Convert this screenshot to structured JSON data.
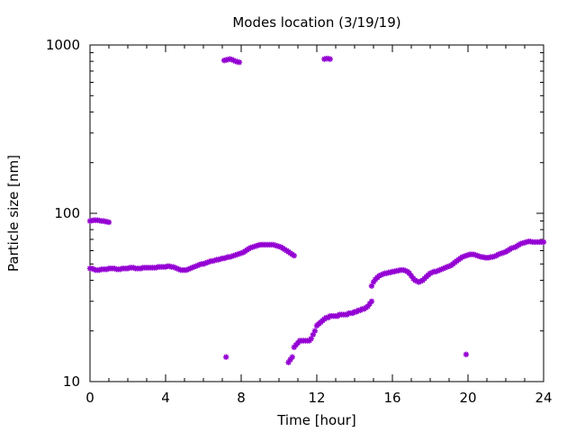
{
  "chart_data": {
    "type": "scatter",
    "title": "Modes location (3/19/19)",
    "xlabel": "Time [hour]",
    "ylabel": "Particle size [nm]",
    "xlim": [
      0,
      24
    ],
    "ylim": [
      10,
      1000
    ],
    "y_scale": "log",
    "x_ticks": [
      0,
      4,
      8,
      12,
      16,
      20,
      24
    ],
    "y_ticks": [
      10,
      100,
      1000
    ],
    "x_tick_labels": [
      "0",
      "4",
      "8",
      "12",
      "16",
      "20",
      "24"
    ],
    "y_tick_labels": [
      "10",
      "100",
      "1000"
    ],
    "grid": false,
    "marker_color": "#9400d3",
    "series": [
      {
        "x": [
          0.0,
          0.1,
          0.2,
          0.3,
          0.4,
          0.5,
          0.6,
          0.7,
          0.8,
          0.9,
          1.0,
          1.1,
          1.2,
          1.3,
          1.4,
          1.5,
          1.6,
          1.7,
          1.8,
          1.9,
          2.0,
          2.1,
          2.2,
          2.3,
          2.4,
          2.5,
          2.6,
          2.7,
          2.8,
          2.9,
          3.0,
          3.1,
          3.2,
          3.3,
          3.4,
          3.5,
          3.6,
          3.7,
          3.8,
          3.9,
          4.0,
          4.1,
          4.2,
          4.3,
          4.4,
          4.5,
          4.6,
          4.7,
          4.8,
          4.9,
          5.0,
          5.1,
          5.2,
          5.3,
          5.4,
          5.5,
          5.6,
          5.7,
          5.8,
          5.9,
          6.0,
          6.1,
          6.2,
          6.3,
          6.4,
          6.5,
          6.6,
          6.7,
          6.8,
          6.9,
          7.0,
          7.1,
          7.2,
          7.3,
          7.4,
          7.5,
          7.6,
          7.7,
          7.8,
          7.9,
          8.0,
          8.1,
          8.2,
          8.3,
          8.4,
          8.5,
          8.6,
          8.7,
          8.8,
          8.9,
          9.0,
          9.1,
          9.2,
          9.3,
          9.4,
          9.5,
          9.6,
          9.7,
          9.8,
          9.9,
          10.0,
          10.1,
          10.2,
          10.3,
          10.4,
          10.5,
          10.6,
          10.7,
          10.8
        ],
        "y": [
          47,
          47,
          46.5,
          46,
          46,
          46,
          46.5,
          46.5,
          46.5,
          46.5,
          47,
          47,
          47,
          47,
          46.5,
          46.5,
          46.5,
          47,
          47,
          47,
          47,
          47.5,
          47.5,
          47.5,
          47,
          47,
          47,
          47,
          47.5,
          47.5,
          47.5,
          47.5,
          47.5,
          47.5,
          47.5,
          47.5,
          48,
          48,
          48,
          48,
          48,
          48.5,
          48.5,
          48,
          48,
          47.5,
          47,
          46.5,
          46,
          46,
          46,
          46,
          46.5,
          47,
          47.5,
          48,
          48.5,
          49,
          49.5,
          50,
          50,
          50.5,
          51,
          51.5,
          52,
          52,
          52.5,
          53,
          53,
          53.5,
          54,
          54,
          54.5,
          55,
          55,
          55.5,
          56,
          56.5,
          57,
          57.5,
          58,
          58.5,
          59.5,
          60.5,
          61.5,
          62.5,
          63,
          63.5,
          64,
          64.5,
          65,
          65,
          65,
          65,
          65,
          65,
          65,
          65,
          64.5,
          64,
          63.5,
          63,
          62,
          61,
          60,
          59,
          58,
          57,
          56
        ]
      },
      {
        "x": [
          0.0,
          0.1,
          0.2,
          0.3,
          0.4,
          0.5,
          0.6,
          0.7,
          0.8,
          0.9,
          1.0
        ],
        "y": [
          90,
          90.5,
          91,
          91,
          91,
          90.5,
          90,
          90,
          89.5,
          89,
          88.5
        ]
      },
      {
        "x": [
          7.1,
          7.2,
          7.3,
          7.4,
          7.5,
          7.6,
          7.7,
          7.8,
          7.9
        ],
        "y": [
          810,
          815,
          820,
          825,
          820,
          810,
          800,
          795,
          790
        ]
      },
      {
        "x": [
          12.4,
          12.5,
          12.6,
          12.7
        ],
        "y": [
          825,
          830,
          830,
          825
        ]
      },
      {
        "x": [
          7.2
        ],
        "y": [
          14
        ]
      },
      {
        "x": [
          19.9
        ],
        "y": [
          14.5
        ]
      },
      {
        "x": [
          10.5,
          10.6,
          10.7,
          10.8,
          10.9,
          11.0,
          11.1,
          11.2,
          11.3,
          11.4,
          11.5,
          11.6,
          11.7,
          11.8,
          11.9,
          12.0,
          12.1,
          12.2,
          12.3,
          12.4,
          12.5,
          12.6,
          12.7,
          12.8,
          12.9,
          13.0,
          13.1,
          13.2,
          13.3,
          13.4,
          13.5,
          13.6,
          13.7,
          13.8,
          13.9,
          14.0,
          14.1,
          14.2,
          14.3,
          14.4,
          14.5,
          14.6,
          14.7,
          14.8,
          14.9
        ],
        "y": [
          13,
          13.5,
          14,
          16,
          16.5,
          17,
          17.5,
          17.5,
          17.5,
          17.5,
          17.5,
          17.5,
          18,
          19,
          20,
          21.5,
          22,
          22.5,
          23,
          23.5,
          24,
          24,
          24.5,
          24.5,
          24.5,
          24.5,
          24.5,
          25,
          25,
          25,
          25,
          25,
          25.5,
          25.5,
          25.5,
          26,
          26,
          26.5,
          26.5,
          27,
          27,
          27.5,
          28,
          29,
          30
        ]
      },
      {
        "x": [
          14.9,
          15.0,
          15.1,
          15.2,
          15.3,
          15.4,
          15.5,
          15.6,
          15.7,
          15.8,
          15.9,
          16.0,
          16.1,
          16.2,
          16.3,
          16.4,
          16.5,
          16.6,
          16.7,
          16.8,
          16.9,
          17.0,
          17.1,
          17.2,
          17.3,
          17.4,
          17.5,
          17.6,
          17.7,
          17.8,
          17.9,
          18.0,
          18.1,
          18.2,
          18.3,
          18.4,
          18.5,
          18.6,
          18.7,
          18.8,
          18.9,
          19.0,
          19.1,
          19.2,
          19.3,
          19.4,
          19.5,
          19.6,
          19.7,
          19.8,
          19.9,
          20.0,
          20.1,
          20.2,
          20.3,
          20.4,
          20.5,
          20.6,
          20.7,
          20.8,
          20.9,
          21.0,
          21.1,
          21.2,
          21.3,
          21.4,
          21.5,
          21.6,
          21.7,
          21.8,
          21.9,
          22.0,
          22.1,
          22.2,
          22.3,
          22.4,
          22.5,
          22.6,
          22.7,
          22.8,
          22.9,
          23.0,
          23.1,
          23.2,
          23.3,
          23.4,
          23.5,
          23.6,
          23.7,
          23.8,
          23.9,
          24.0
        ],
        "y": [
          37,
          39,
          40.5,
          41.5,
          42.5,
          43,
          43.5,
          44,
          44,
          44.5,
          44.5,
          45,
          45,
          45.5,
          45.5,
          46,
          46,
          46,
          45.5,
          45,
          44,
          42.5,
          41,
          40,
          39.5,
          39,
          39.5,
          40,
          41,
          42,
          43,
          44,
          44.5,
          45,
          45,
          45.5,
          46,
          46.5,
          47,
          47.5,
          48,
          48.5,
          49,
          50,
          51,
          52,
          53,
          54,
          55,
          55.5,
          56,
          56.5,
          57,
          57,
          57,
          56.5,
          56,
          55.5,
          55,
          55,
          54.5,
          54.5,
          54.5,
          55,
          55,
          55.5,
          56,
          57,
          57.5,
          58,
          58.5,
          59,
          60,
          61,
          62,
          62.5,
          63,
          64,
          65,
          66,
          66.5,
          67,
          67.5,
          68,
          68,
          67.5,
          67.5,
          67.5,
          67.5,
          67.5,
          67.5,
          67.5
        ]
      }
    ]
  }
}
